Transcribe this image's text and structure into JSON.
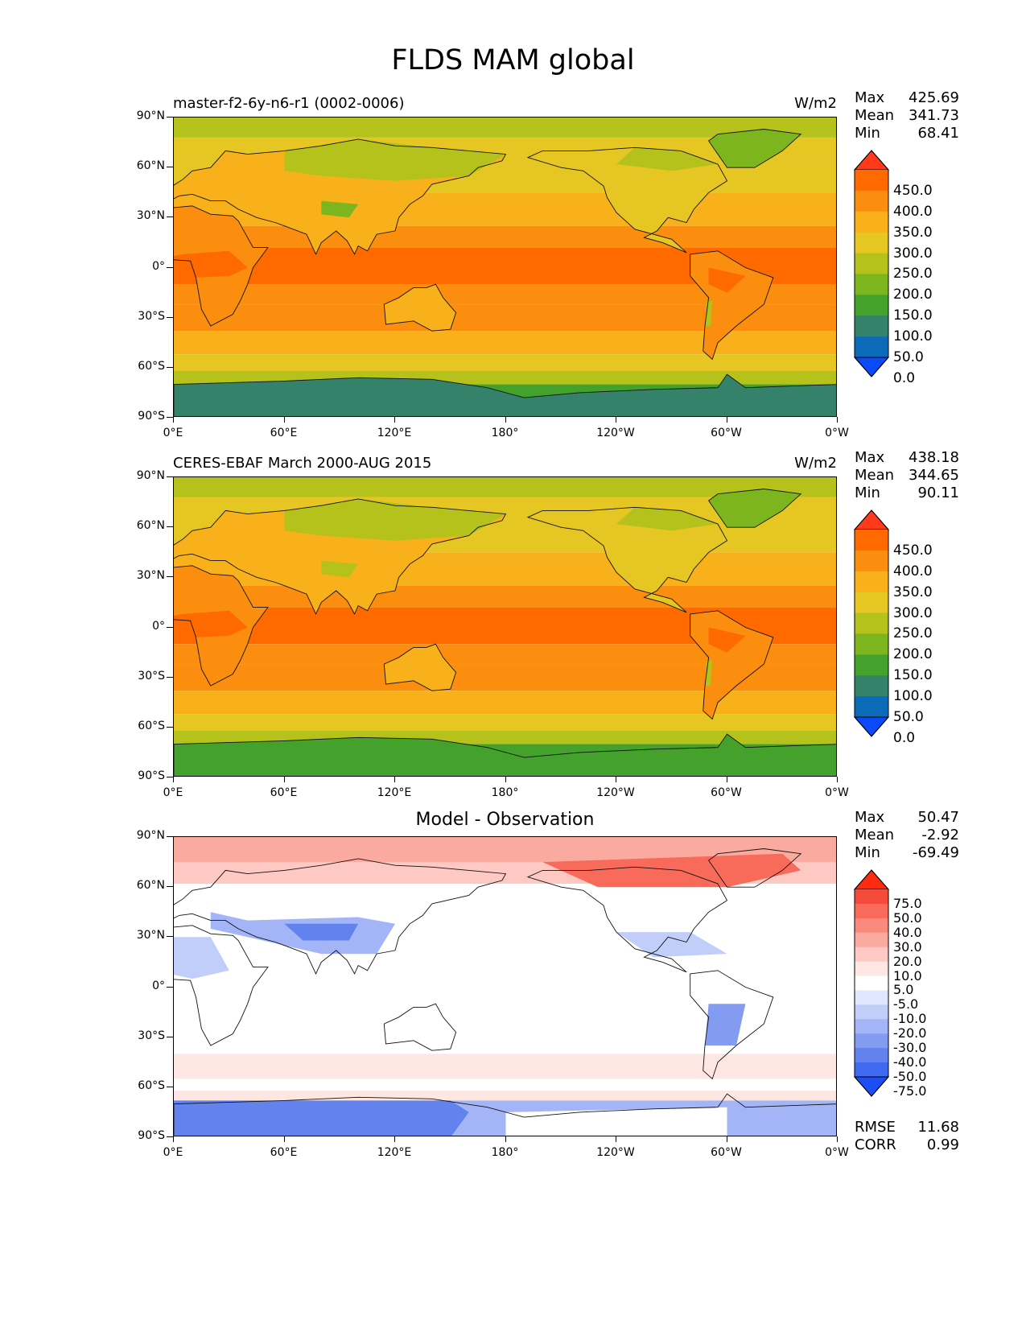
{
  "title": "FLDS MAM global",
  "lat_ticks": [
    "90°N",
    "60°N",
    "30°N",
    "0°",
    "30°S",
    "60°S",
    "90°S"
  ],
  "lon_ticks": [
    "0°E",
    "60°E",
    "120°E",
    "180°",
    "120°W",
    "60°W",
    "0°W"
  ],
  "panels": [
    {
      "name": "model",
      "title": "master-f2-6y-n6-r1 (0002-0006)",
      "units": "W/m2",
      "stats": {
        "max_label": "Max",
        "max": "425.69",
        "mean_label": "Mean",
        "mean": "341.73",
        "min_label": "Min",
        "min": "68.41"
      },
      "colorbar": {
        "levels": [
          "450.0",
          "400.0",
          "350.0",
          "300.0",
          "250.0",
          "200.0",
          "150.0",
          "100.0",
          "50.0",
          "0.0"
        ],
        "colors": [
          "#ff3a1a",
          "#ff6a00",
          "#fb8e0e",
          "#f8b11b",
          "#e6c623",
          "#b4c21b",
          "#7db51e",
          "#43a12c",
          "#34826a",
          "#0c6bb8",
          "#0a4af9"
        ]
      }
    },
    {
      "name": "obs",
      "title": "CERES-EBAF March 2000-AUG 2015",
      "units": "W/m2",
      "stats": {
        "max_label": "Max",
        "max": "438.18",
        "mean_label": "Mean",
        "mean": "344.65",
        "min_label": "Min",
        "min": "90.11"
      },
      "colorbar": {
        "levels": [
          "450.0",
          "400.0",
          "350.0",
          "300.0",
          "250.0",
          "200.0",
          "150.0",
          "100.0",
          "50.0",
          "0.0"
        ],
        "colors": [
          "#ff3a1a",
          "#ff6a00",
          "#fb8e0e",
          "#f8b11b",
          "#e6c623",
          "#b4c21b",
          "#7db51e",
          "#43a12c",
          "#34826a",
          "#0c6bb8",
          "#0a4af9"
        ]
      }
    },
    {
      "name": "diff",
      "title": "Model - Observation",
      "units": "",
      "stats": {
        "max_label": "Max",
        "max": "50.47",
        "mean_label": "Mean",
        "mean": "-2.92",
        "min_label": "Min",
        "min": "-69.49"
      },
      "colorbar": {
        "levels": [
          "75.0",
          "50.0",
          "40.0",
          "30.0",
          "20.0",
          "10.0",
          "5.0",
          "-5.0",
          "-10.0",
          "-20.0",
          "-30.0",
          "-40.0",
          "-50.0",
          "-75.0"
        ],
        "colors": [
          "#ff2a10",
          "#f34a3a",
          "#f86a5a",
          "#fa8a7e",
          "#fbaaa0",
          "#fdc9c2",
          "#fee6e2",
          "#ffffff",
          "#dfe6fd",
          "#c2cefa",
          "#a3b5f6",
          "#839cf2",
          "#6283ee",
          "#3f6af0",
          "#1d4df7"
        ]
      },
      "metrics": {
        "rmse_label": "RMSE",
        "rmse": "11.68",
        "corr_label": "CORR",
        "corr": "0.99"
      }
    }
  ]
}
